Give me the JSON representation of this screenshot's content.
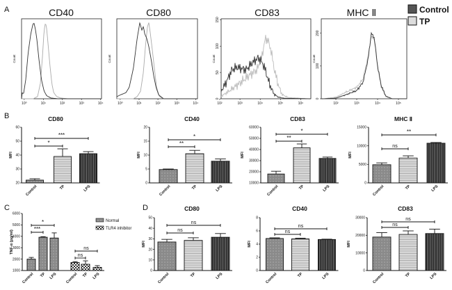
{
  "panel_labels": {
    "A": "A",
    "B": "B",
    "C": "C",
    "D": "D"
  },
  "panel_a_legend": [
    {
      "label": "Control",
      "color": "#555555"
    },
    {
      "label": "TP",
      "color": "#dddddd"
    }
  ],
  "c_legend": [
    {
      "label": "Normal",
      "pattern": "grey"
    },
    {
      "label": "TLR4 inhibitor",
      "pattern": "checker"
    }
  ],
  "chart_data": [
    {
      "type": "line",
      "panel": "A",
      "title": "CD40",
      "ylabel": "Count",
      "xscale": "log",
      "xticks": [
        "10⁰",
        "10¹",
        "10²",
        "10³",
        "10⁴"
      ],
      "yticks": [],
      "ylim": [
        0,
        105
      ],
      "series": [
        {
          "name": "Control",
          "color": "#333333",
          "points": [
            [
              0.75,
              0
            ],
            [
              0.8,
              10
            ],
            [
              0.9,
              5
            ],
            [
              1.2,
              25
            ],
            [
              1.6,
              60
            ],
            [
              2.2,
              85
            ],
            [
              2.8,
              97
            ],
            [
              3.2,
              100
            ],
            [
              3.8,
              92
            ],
            [
              4.5,
              80
            ],
            [
              6,
              50
            ],
            [
              8,
              25
            ],
            [
              11,
              10
            ],
            [
              15,
              4
            ],
            [
              25,
              1
            ],
            [
              60,
              0
            ],
            [
              10000,
              0
            ]
          ]
        },
        {
          "name": "TP",
          "color": "#aaaaaa",
          "points": [
            [
              3,
              0
            ],
            [
              5,
              3
            ],
            [
              7,
              20
            ],
            [
              9,
              55
            ],
            [
              11,
              90
            ],
            [
              13,
              100
            ],
            [
              15,
              92
            ],
            [
              18,
              70
            ],
            [
              22,
              45
            ],
            [
              28,
              20
            ],
            [
              35,
              8
            ],
            [
              50,
              3
            ],
            [
              80,
              1
            ],
            [
              200,
              0
            ],
            [
              10000,
              0
            ]
          ]
        }
      ]
    },
    {
      "type": "line",
      "panel": "A",
      "title": "CD80",
      "ylabel": "Count",
      "xscale": "log",
      "xticks": [
        "10⁰",
        "10¹",
        "10²",
        "10³",
        "10⁴"
      ],
      "yticks": [],
      "ylim": [
        0,
        105
      ],
      "series": [
        {
          "name": "Control",
          "color": "#333333",
          "points": [
            [
              0.7,
              3
            ],
            [
              1,
              5
            ],
            [
              2,
              8
            ],
            [
              3,
              15
            ],
            [
              5,
              40
            ],
            [
              8,
              80
            ],
            [
              11,
              100
            ],
            [
              14,
              90
            ],
            [
              17,
              95
            ],
            [
              20,
              85
            ],
            [
              25,
              80
            ],
            [
              32,
              70
            ],
            [
              45,
              50
            ],
            [
              60,
              30
            ],
            [
              80,
              15
            ],
            [
              110,
              5
            ],
            [
              200,
              0
            ],
            [
              10000,
              0
            ]
          ]
        },
        {
          "name": "TP",
          "color": "#aaaaaa",
          "points": [
            [
              5,
              0
            ],
            [
              8,
              3
            ],
            [
              12,
              10
            ],
            [
              17,
              35
            ],
            [
              22,
              70
            ],
            [
              28,
              95
            ],
            [
              33,
              100
            ],
            [
              40,
              85
            ],
            [
              50,
              65
            ],
            [
              65,
              40
            ],
            [
              85,
              15
            ],
            [
              120,
              3
            ],
            [
              200,
              0
            ],
            [
              10000,
              0
            ]
          ]
        }
      ]
    },
    {
      "type": "line",
      "panel": "A",
      "title": "CD83",
      "ylabel": "Count",
      "xscale": "log",
      "xticks": [
        "10²",
        "10³",
        "10⁴",
        "10⁵",
        "10⁶"
      ],
      "yticks": [
        0,
        50,
        100,
        150
      ],
      "ylim": [
        0,
        152
      ],
      "series": [
        {
          "name": "Control",
          "color": "#333333",
          "points": [
            [
              120,
              15
            ],
            [
              200,
              30
            ],
            [
              400,
              55
            ],
            [
              700,
              60
            ],
            [
              1000,
              58
            ],
            [
              2000,
              55
            ],
            [
              4000,
              68
            ],
            [
              8000,
              78
            ],
            [
              12000,
              70
            ],
            [
              18000,
              55
            ],
            [
              25000,
              35
            ],
            [
              35000,
              20
            ],
            [
              50000,
              8
            ],
            [
              80000,
              3
            ],
            [
              150000,
              1
            ],
            [
              3000000,
              0
            ]
          ]
        },
        {
          "name": "TP",
          "color": "#bbbbbb",
          "points": [
            [
              120,
              5
            ],
            [
              300,
              15
            ],
            [
              1000,
              30
            ],
            [
              3000,
              45
            ],
            [
              7000,
              55
            ],
            [
              12000,
              80
            ],
            [
              18000,
              115
            ],
            [
              25000,
              110
            ],
            [
              35000,
              90
            ],
            [
              50000,
              55
            ],
            [
              80000,
              25
            ],
            [
              120000,
              8
            ],
            [
              250000,
              2
            ],
            [
              3000000,
              0
            ]
          ]
        }
      ]
    },
    {
      "type": "line",
      "panel": "A",
      "title": "MHC Ⅱ",
      "ylabel": "Count",
      "xscale": "log",
      "xticks": [
        "10²",
        "10³",
        "10⁴",
        "10⁵"
      ],
      "yticks": [
        0,
        100,
        200
      ],
      "ylim": [
        0,
        244
      ],
      "series": [
        {
          "name": "Control",
          "color": "#333333",
          "points": [
            [
              25,
              0
            ],
            [
              100,
              2
            ],
            [
              300,
              12
            ],
            [
              1000,
              25
            ],
            [
              2000,
              50
            ],
            [
              3500,
              120
            ],
            [
              5000,
              200
            ],
            [
              7000,
              185
            ],
            [
              10000,
              100
            ],
            [
              15000,
              40
            ],
            [
              25000,
              8
            ],
            [
              50000,
              0
            ],
            [
              250000,
              0
            ]
          ]
        },
        {
          "name": "TP",
          "color": "#bbbbbb",
          "points": [
            [
              25,
              0
            ],
            [
              100,
              5
            ],
            [
              300,
              20
            ],
            [
              1000,
              35
            ],
            [
              2000,
              60
            ],
            [
              3500,
              130
            ],
            [
              5000,
              190
            ],
            [
              7000,
              180
            ],
            [
              10000,
              95
            ],
            [
              15000,
              35
            ],
            [
              25000,
              6
            ],
            [
              50000,
              0
            ],
            [
              250000,
              0
            ]
          ]
        }
      ]
    },
    {
      "type": "bar",
      "panel": "B",
      "title": "CD80",
      "ylabel": "MFI",
      "categories": [
        "Control",
        "TP",
        "LPS"
      ],
      "values": [
        22,
        39,
        41
      ],
      "errors": [
        1,
        5.5,
        1.5
      ],
      "ylim": [
        20,
        60
      ],
      "yticks": [
        20,
        30,
        40,
        50,
        60
      ],
      "patterns": [
        "grey",
        "hstripe",
        "vstripe"
      ],
      "significance": [
        {
          "from": 0,
          "to": 1,
          "label": "*"
        },
        {
          "from": 0,
          "to": 2,
          "label": "***"
        }
      ]
    },
    {
      "type": "bar",
      "panel": "B",
      "title": "CD40",
      "ylabel": "MFI",
      "categories": [
        "Control",
        "TP",
        "LPS"
      ],
      "values": [
        4.8,
        10.5,
        7.8
      ],
      "errors": [
        0.2,
        1.2,
        0.8
      ],
      "ylim": [
        0,
        20
      ],
      "yticks": [
        0,
        5,
        10,
        15,
        20
      ],
      "patterns": [
        "grey",
        "hstripe",
        "vstripe"
      ],
      "significance": [
        {
          "from": 0,
          "to": 1,
          "label": "**"
        },
        {
          "from": 0,
          "to": 2,
          "label": "*"
        }
      ]
    },
    {
      "type": "bar",
      "panel": "B",
      "title": "CD83",
      "ylabel": "MFI",
      "categories": [
        "Control",
        "TP",
        "LPS"
      ],
      "values": [
        18000,
        41500,
        32000
      ],
      "errors": [
        2500,
        3500,
        1200
      ],
      "ylim": [
        10000,
        60000
      ],
      "yticks": [
        10000,
        20000,
        30000,
        40000,
        50000,
        60000
      ],
      "patterns": [
        "grey",
        "hstripe",
        "vstripe"
      ],
      "significance": [
        {
          "from": 0,
          "to": 1,
          "label": "**"
        },
        {
          "from": 0,
          "to": 2,
          "label": "*"
        }
      ]
    },
    {
      "type": "bar",
      "panel": "B",
      "title": "MHC Ⅱ",
      "ylabel": "MFI",
      "categories": [
        "Control",
        "TP",
        "LPS"
      ],
      "values": [
        4900,
        6700,
        10700
      ],
      "errors": [
        500,
        600,
        200
      ],
      "ylim": [
        0,
        15000
      ],
      "yticks": [
        0,
        5000,
        10000,
        15000
      ],
      "patterns": [
        "grey",
        "hstripe",
        "vstripe"
      ],
      "significance": [
        {
          "from": 0,
          "to": 1,
          "label": "ns"
        },
        {
          "from": 0,
          "to": 2,
          "label": "**"
        }
      ]
    },
    {
      "type": "bar",
      "panel": "C",
      "title": "",
      "ylabel": "TNF-α (pg/ml)",
      "categories": [
        "Control",
        "TP",
        "LPS",
        "Control",
        "TP",
        "LPS"
      ],
      "series_groups": [
        "Normal",
        "Normal",
        "Normal",
        "TLR4 inhibitor",
        "TLR4 inhibitor",
        "TLR4 inhibitor"
      ],
      "values": [
        2000,
        3920,
        3850,
        1700,
        1550,
        1280
      ],
      "errors": [
        150,
        50,
        450,
        80,
        300,
        150
      ],
      "ylim": [
        1000,
        6000
      ],
      "yticks": [
        1000,
        2000,
        3000,
        4000,
        5000,
        6000
      ],
      "patterns": [
        "grey",
        "grey",
        "grey",
        "checker",
        "checker",
        "checker"
      ],
      "significance": [
        {
          "from": 0,
          "to": 1,
          "label": "***"
        },
        {
          "from": 0,
          "to": 2,
          "label": "*"
        },
        {
          "from": 3,
          "to": 4,
          "label": "ns"
        },
        {
          "from": 3,
          "to": 5,
          "label": "ns"
        }
      ]
    },
    {
      "type": "bar",
      "panel": "D",
      "title": "CD80",
      "ylabel": "MFI",
      "categories": [
        "Control",
        "TP",
        "LPS"
      ],
      "values": [
        27,
        28.5,
        31.5
      ],
      "errors": [
        2.5,
        2.5,
        3.5
      ],
      "ylim": [
        0,
        50
      ],
      "yticks": [
        0,
        10,
        20,
        30,
        40,
        50
      ],
      "patterns": [
        "grey",
        "hstripe",
        "vstripe"
      ],
      "significance": [
        {
          "from": 0,
          "to": 1,
          "label": "ns"
        },
        {
          "from": 0,
          "to": 2,
          "label": "ns"
        }
      ]
    },
    {
      "type": "bar",
      "panel": "D",
      "title": "CD40",
      "ylabel": "MFI",
      "categories": [
        "Control",
        "TP",
        "LPS"
      ],
      "values": [
        4.85,
        4.8,
        4.7
      ],
      "errors": [
        0.1,
        0.1,
        0.05
      ],
      "ylim": [
        0,
        8
      ],
      "yticks": [
        0,
        2,
        4,
        6,
        8
      ],
      "patterns": [
        "grey",
        "hstripe",
        "vstripe"
      ],
      "significance": [
        {
          "from": 0,
          "to": 1,
          "label": "ns"
        },
        {
          "from": 0,
          "to": 2,
          "label": "ns"
        }
      ]
    },
    {
      "type": "bar",
      "panel": "D",
      "title": "CD83",
      "ylabel": "MFI",
      "categories": [
        "Control",
        "TP",
        "LPS"
      ],
      "values": [
        19000,
        20500,
        21000
      ],
      "errors": [
        2500,
        2000,
        2500
      ],
      "ylim": [
        0,
        30000
      ],
      "yticks": [
        0,
        10000,
        20000,
        30000
      ],
      "patterns": [
        "grey",
        "hstripe",
        "vstripe"
      ],
      "significance": [
        {
          "from": 0,
          "to": 1,
          "label": "ns"
        },
        {
          "from": 0,
          "to": 2,
          "label": "ns"
        }
      ]
    }
  ]
}
